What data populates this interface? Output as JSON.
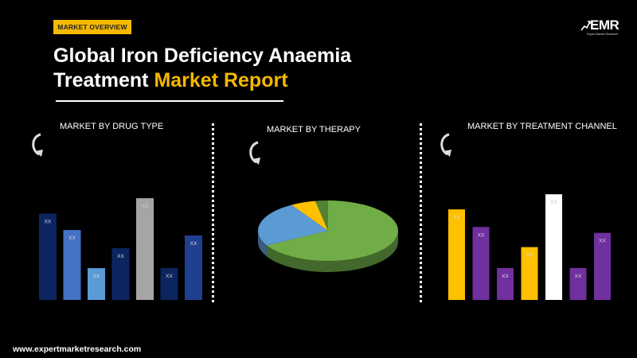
{
  "header": {
    "tag": "MARKET OVERVIEW",
    "title_line1": "Global Iron Deficiency Anaemia",
    "title_line2_plain": "Treatment ",
    "title_line2_highlight": "Market Report",
    "logo_text": "EMR",
    "logo_sub": "Expert Market Research"
  },
  "footer": {
    "url": "www.expertmarketresearch.com"
  },
  "colors": {
    "accent": "#f5b800",
    "background": "#000000"
  },
  "icons": {
    "section_arrow": "curved-arrow-icon"
  },
  "chart_data": [
    {
      "type": "bar",
      "title": "MARKET BY DRUG TYPE",
      "categories": [
        "",
        "",
        "",
        "",
        "",
        "",
        ""
      ],
      "values": [
        95,
        77,
        35,
        57,
        112,
        35,
        71
      ],
      "data_labels": [
        "XX",
        "XX",
        "XX",
        "XX",
        "XX",
        "XX",
        "XX"
      ],
      "colors": [
        "#0c2560",
        "#4472c4",
        "#5b9bd5",
        "#0c2560",
        "#a5a5a5",
        "#0c2560",
        "#1f3f8f"
      ],
      "ylim": [
        0,
        120
      ],
      "grid": false
    },
    {
      "type": "pie",
      "title": "MARKET BY THERAPY",
      "labels": [
        "",
        "",
        ""
      ],
      "values": [
        69,
        25,
        6
      ],
      "extra_slice": 3,
      "colors": [
        "#70ad47",
        "#5b9bd5",
        "#ffc000",
        "#548235"
      ],
      "grid": false
    },
    {
      "type": "bar",
      "title": "MARKET BY TREATMENT CHANNEL",
      "categories": [
        "",
        "",
        "",
        "",
        "",
        "",
        ""
      ],
      "values": [
        108,
        87,
        38,
        63,
        126,
        38,
        80
      ],
      "data_labels": [
        "XX",
        "XX",
        "XX",
        "XX",
        "XX",
        "XX",
        "XX"
      ],
      "colors": [
        "#ffc000",
        "#7030a0",
        "#7030a0",
        "#ffc000",
        "#ffffff",
        "#7030a0",
        "#7030a0"
      ],
      "ylim": [
        0,
        130
      ],
      "grid": false
    }
  ]
}
